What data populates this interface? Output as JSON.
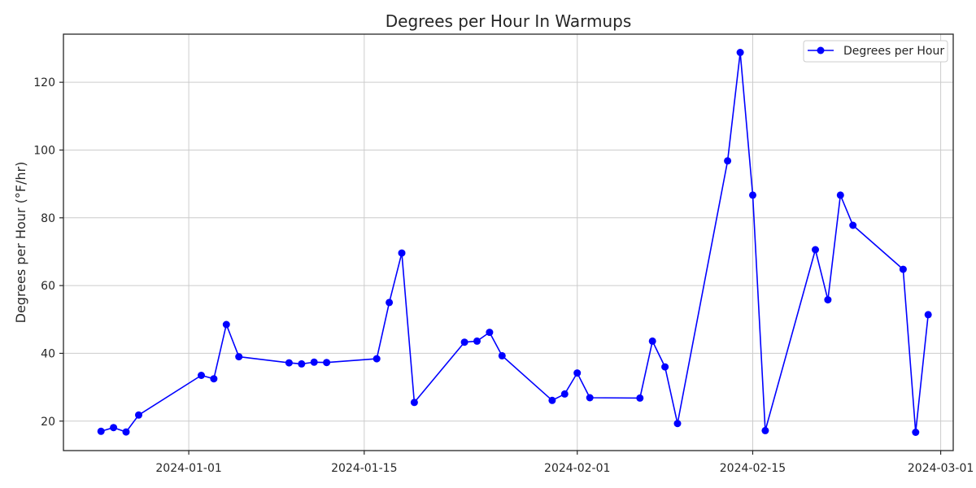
{
  "chart_data": {
    "type": "line",
    "title": "Degrees per Hour In Warmups",
    "xlabel": "",
    "ylabel": "Degrees per Hour (°F/hr)",
    "x_axis_type": "date",
    "xlim": [
      "2023-12-22",
      "2024-03-02"
    ],
    "ylim": [
      11.3,
      134.2
    ],
    "x_ticks": [
      "2024-01-01",
      "2024-01-15",
      "2024-02-01",
      "2024-02-15",
      "2024-03-01"
    ],
    "y_ticks": [
      20,
      40,
      60,
      80,
      100,
      120
    ],
    "grid": true,
    "legend_position": "top-right",
    "series": [
      {
        "name": "Degrees per Hour",
        "color": "#0000ff",
        "marker": "circle",
        "points": [
          {
            "x": "2023-12-25",
            "y": 17.0
          },
          {
            "x": "2023-12-26",
            "y": 18.1
          },
          {
            "x": "2023-12-27",
            "y": 16.8
          },
          {
            "x": "2023-12-28",
            "y": 21.8
          },
          {
            "x": "2024-01-02",
            "y": 33.5
          },
          {
            "x": "2024-01-03",
            "y": 32.5
          },
          {
            "x": "2024-01-04",
            "y": 48.5
          },
          {
            "x": "2024-01-05",
            "y": 39.0
          },
          {
            "x": "2024-01-09",
            "y": 37.2
          },
          {
            "x": "2024-01-10",
            "y": 36.9
          },
          {
            "x": "2024-01-11",
            "y": 37.4
          },
          {
            "x": "2024-01-12",
            "y": 37.3
          },
          {
            "x": "2024-01-16",
            "y": 38.4
          },
          {
            "x": "2024-01-17",
            "y": 55.0
          },
          {
            "x": "2024-01-18",
            "y": 69.6
          },
          {
            "x": "2024-01-19",
            "y": 25.5
          },
          {
            "x": "2024-01-23",
            "y": 43.3
          },
          {
            "x": "2024-01-24",
            "y": 43.6
          },
          {
            "x": "2024-01-25",
            "y": 46.2
          },
          {
            "x": "2024-01-26",
            "y": 39.3
          },
          {
            "x": "2024-01-30",
            "y": 26.1
          },
          {
            "x": "2024-01-31",
            "y": 28.0
          },
          {
            "x": "2024-02-01",
            "y": 34.2
          },
          {
            "x": "2024-02-02",
            "y": 26.9
          },
          {
            "x": "2024-02-06",
            "y": 26.8
          },
          {
            "x": "2024-02-07",
            "y": 43.6
          },
          {
            "x": "2024-02-08",
            "y": 36.0
          },
          {
            "x": "2024-02-09",
            "y": 19.3
          },
          {
            "x": "2024-02-13",
            "y": 96.8
          },
          {
            "x": "2024-02-14",
            "y": 128.8
          },
          {
            "x": "2024-02-15",
            "y": 86.7
          },
          {
            "x": "2024-02-16",
            "y": 17.2
          },
          {
            "x": "2024-02-20",
            "y": 70.6
          },
          {
            "x": "2024-02-21",
            "y": 55.8
          },
          {
            "x": "2024-02-22",
            "y": 86.7
          },
          {
            "x": "2024-02-23",
            "y": 77.8
          },
          {
            "x": "2024-02-27",
            "y": 64.8
          },
          {
            "x": "2024-02-28",
            "y": 16.7
          },
          {
            "x": "2024-02-29",
            "y": 51.4
          }
        ]
      }
    ]
  }
}
